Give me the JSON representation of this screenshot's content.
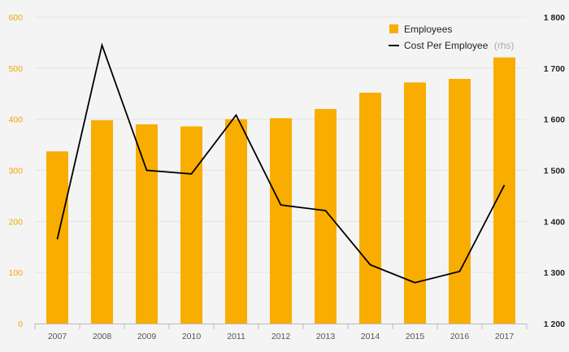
{
  "chart_data": {
    "type": "bar",
    "categories": [
      "2007",
      "2008",
      "2009",
      "2010",
      "2011",
      "2012",
      "2013",
      "2014",
      "2015",
      "2016",
      "2017"
    ],
    "series": [
      {
        "name": "Employees",
        "type": "bar",
        "axis": "left",
        "color": "#f9ad00",
        "values": [
          337,
          398,
          390,
          386,
          400,
          402,
          420,
          452,
          472,
          479,
          521
        ]
      },
      {
        "name": "Cost Per Employee",
        "unit_label": "(rhs)",
        "type": "line",
        "axis": "right",
        "color": "#000000",
        "values": [
          1365,
          1745,
          1500,
          1493,
          1608,
          1432,
          1421,
          1315,
          1280,
          1302,
          1471
        ]
      }
    ],
    "y_left": {
      "min": 0,
      "max": 600,
      "ticks": [
        "0",
        "100",
        "200",
        "300",
        "400",
        "500",
        "600"
      ],
      "color": "#f0a500"
    },
    "y_right": {
      "min": 1200,
      "max": 1800,
      "ticks": [
        "1 200",
        "1 300",
        "1 400",
        "1 500",
        "1 600",
        "1 700",
        "1 800"
      ]
    },
    "legend_position": "top-right",
    "grid": true,
    "background": "#f4f4f4"
  }
}
